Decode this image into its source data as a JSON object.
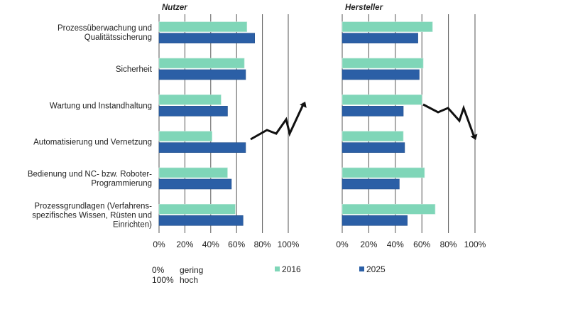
{
  "chart_data": {
    "type": "bar",
    "orientation": "horizontal",
    "categories": [
      [
        "Prozessüberwachung und",
        "Qualitätssicherung"
      ],
      [
        "Sicherheit"
      ],
      [
        "Wartung und Instandhaltung"
      ],
      [
        "Automatisierung und Vernetzung"
      ],
      [
        "Bedienung und NC- bzw. Roboter-",
        "Programmierung"
      ],
      [
        "Prozessgrundlagen (Verfahrens-",
        "spezifisches Wissen, Rüsten und",
        "Einrichten)"
      ]
    ],
    "panels": [
      {
        "title": "Nutzer",
        "series": [
          {
            "name": "2016",
            "color": "#7fd6b8",
            "values": [
              68,
              66,
              48,
              41,
              53,
              59
            ]
          },
          {
            "name": "2025",
            "color": "#2b5fa6",
            "values": [
              74,
              67,
              53,
              67,
              56,
              65
            ]
          }
        ],
        "trend_arrow": "up"
      },
      {
        "title": "Hersteller",
        "series": [
          {
            "name": "2016",
            "color": "#7fd6b8",
            "values": [
              68,
              61,
              60,
              46,
              62,
              70
            ]
          },
          {
            "name": "2025",
            "color": "#2b5fa6",
            "values": [
              57,
              58,
              46,
              47,
              43,
              49
            ]
          }
        ],
        "trend_arrow": "down"
      }
    ],
    "xlim": [
      0,
      100
    ],
    "xticks": [
      "0%",
      "20%",
      "40%",
      "60%",
      "80%",
      "100%"
    ],
    "grid": true,
    "legend": {
      "scale": [
        {
          "value": "0%",
          "meaning": "gering"
        },
        {
          "value": "100%",
          "meaning": "hoch"
        }
      ],
      "series": [
        "2016",
        "2025"
      ]
    }
  }
}
